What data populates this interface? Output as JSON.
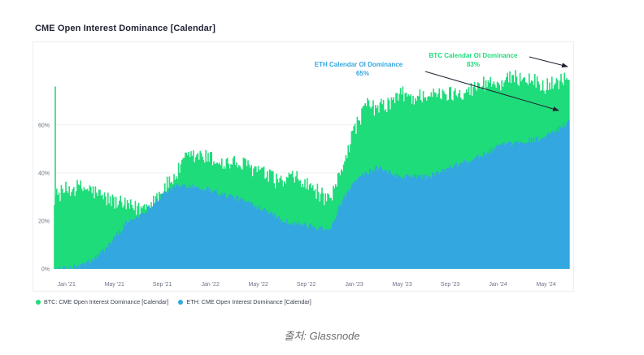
{
  "page": {
    "caption": "출처: Glassnode"
  },
  "chart_data": {
    "type": "area",
    "title": "CME Open Interest Dominance [Calendar]",
    "xlabel": "",
    "ylabel": "",
    "x_ticks": [
      "Jan '21",
      "May '21",
      "Sep '21",
      "Jan '22",
      "May '22",
      "Sep '22",
      "Jan '23",
      "May '23",
      "Sep '23",
      "Jan '24",
      "May '24"
    ],
    "y_ticks": [
      "0%",
      "20%",
      "40%",
      "60%"
    ],
    "ylim": [
      0,
      87
    ],
    "grid": true,
    "legend_position": "bottom-left",
    "x_unit": "month",
    "x": [
      "Dec '20",
      "Jan '21",
      "Feb '21",
      "Mar '21",
      "Apr '21",
      "May '21",
      "Jun '21",
      "Jul '21",
      "Aug '21",
      "Sep '21",
      "Oct '21",
      "Nov '21",
      "Dec '21",
      "Jan '22",
      "Feb '22",
      "Mar '22",
      "Apr '22",
      "May '22",
      "Jun '22",
      "Jul '22",
      "Aug '22",
      "Sep '22",
      "Oct '22",
      "Nov '22",
      "Dec '22",
      "Jan '23",
      "Feb '23",
      "Mar '23",
      "Apr '23",
      "May '23",
      "Jun '23",
      "Jul '23",
      "Aug '23",
      "Sep '23",
      "Oct '23",
      "Nov '23",
      "Dec '23",
      "Jan '24",
      "Feb '24",
      "Mar '24",
      "Apr '24",
      "May '24",
      "Jun '24",
      "Jul '24"
    ],
    "series": [
      {
        "name": "BTC: CME Open Interest Dominance [Calendar]",
        "color": "#1edc7a",
        "values": [
          30,
          33,
          34,
          33,
          30,
          28,
          26,
          25,
          27,
          33,
          38,
          46,
          47,
          46,
          44,
          44,
          43,
          41,
          38,
          36,
          38,
          35,
          32,
          27,
          43,
          58,
          68,
          67,
          69,
          73,
          71,
          73,
          72,
          73,
          74,
          75,
          78,
          77,
          79,
          80,
          78,
          76,
          78,
          80
        ]
      },
      {
        "name": "ETH: CME Open Interest Dominance [Calendar]",
        "color": "#33a7e0",
        "values": [
          0,
          0,
          1,
          3,
          7,
          13,
          19,
          22,
          26,
          31,
          34,
          35,
          34,
          33,
          31,
          30,
          28,
          26,
          24,
          20,
          19,
          18,
          17,
          17,
          28,
          36,
          40,
          42,
          40,
          38,
          39,
          38,
          40,
          42,
          44,
          46,
          48,
          51,
          52,
          53,
          54,
          55,
          58,
          62
        ]
      }
    ],
    "annotations": [
      {
        "label": "ETH Calendar OI Dominance",
        "value_text": "65%",
        "series": 1
      },
      {
        "label": "BTC Calendar OI Dominance",
        "value_text": "83%",
        "series": 0
      }
    ]
  }
}
